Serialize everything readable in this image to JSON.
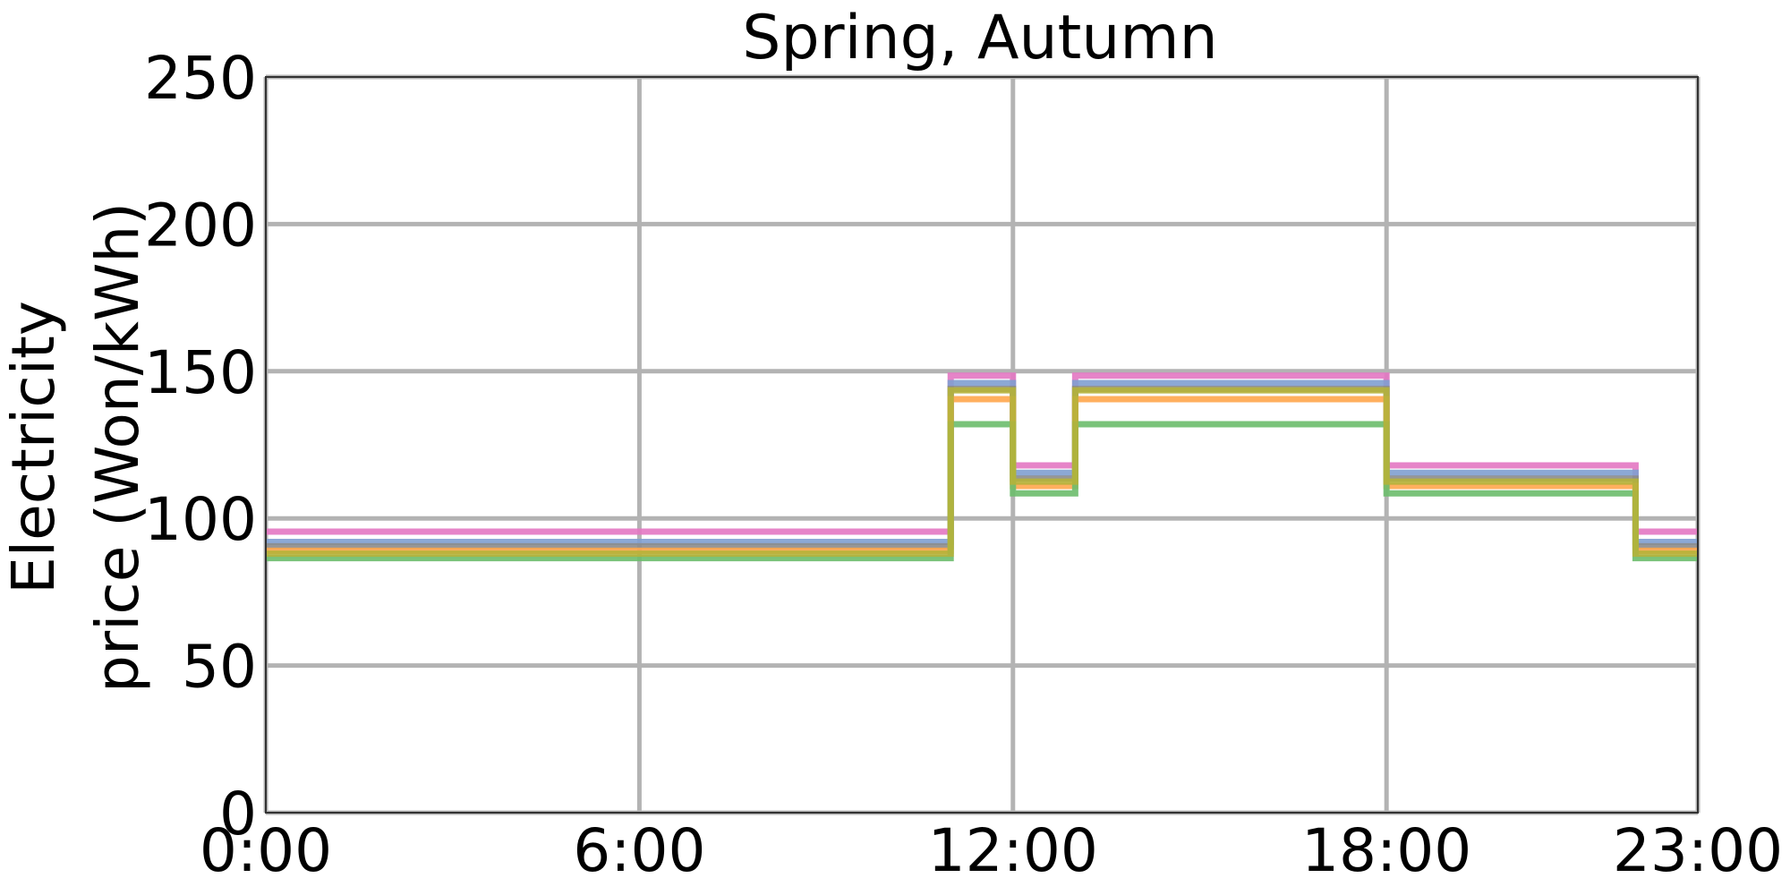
{
  "chart_data": {
    "type": "line",
    "step": "post",
    "title": "Spring, Autumn",
    "xlabel": "",
    "ylabel_lines": [
      "Electricity",
      "price (Won/kWh)"
    ],
    "x_ticks": [
      "0:00",
      "6:00",
      "12:00",
      "18:00",
      "23:00"
    ],
    "x_tick_values": [
      0,
      6,
      12,
      18,
      23
    ],
    "xlim": [
      0,
      23
    ],
    "ylim": [
      0,
      250
    ],
    "y_ticks": [
      0,
      50,
      100,
      150,
      200,
      250
    ],
    "grid": true,
    "x": [
      0,
      11,
      12,
      13,
      18,
      22,
      23
    ],
    "series": [
      {
        "color": "#e377c2",
        "values": [
          95.5,
          148.5,
          118.0,
          148.5,
          118.0,
          95.5,
          95.5
        ]
      },
      {
        "color": "#7f9fd0",
        "values": [
          92.0,
          146.0,
          115.5,
          146.0,
          115.5,
          92.0,
          92.0
        ]
      },
      {
        "color": "#8c8c8c",
        "values": [
          90.5,
          144.0,
          113.5,
          144.0,
          113.5,
          90.5,
          90.5
        ]
      },
      {
        "color": "#ffa64d",
        "values": [
          89.0,
          140.5,
          111.0,
          140.5,
          111.0,
          89.0,
          89.0
        ]
      },
      {
        "color": "#6cbd6c",
        "values": [
          86.5,
          132.0,
          108.5,
          132.0,
          108.5,
          86.5,
          86.5
        ]
      },
      {
        "color": "#b5b23a",
        "values": [
          88.0,
          143.5,
          112.5,
          143.5,
          112.5,
          88.0,
          88.0
        ]
      }
    ]
  }
}
